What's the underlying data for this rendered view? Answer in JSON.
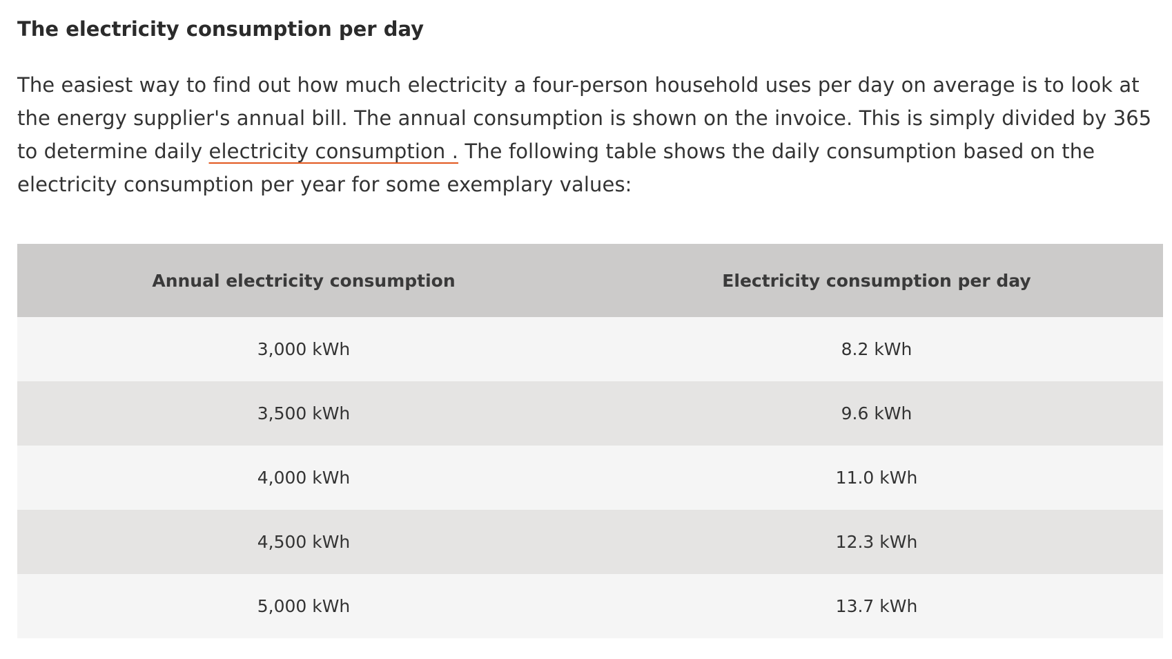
{
  "heading": "The electricity consumption per day",
  "intro": {
    "before_link": "The easiest way to find out how much electricity a four-person household uses per day on average is to look at the energy supplier's annual bill. The annual consumption is shown on the invoice. This is simply divided by 365 to determine daily ",
    "link_text": "electricity consumption .",
    "after_link": " The following table shows the daily consumption based on the electricity consumption per year for some exemplary values:"
  },
  "table": {
    "headers": [
      "Annual electricity consumption",
      "Electricity consumption per day"
    ],
    "rows": [
      [
        "3,000 kWh",
        "8.2 kWh"
      ],
      [
        "3,500 kWh",
        "9.6 kWh"
      ],
      [
        "4,000 kWh",
        "11.0 kWh"
      ],
      [
        "4,500 kWh",
        "12.3 kWh"
      ],
      [
        "5,000 kWh",
        "13.7 kWh"
      ]
    ]
  },
  "colors": {
    "link_underline": "#e2571e",
    "header_bg": "#cccbca",
    "row_odd_bg": "#f5f5f5",
    "row_even_bg": "#e5e4e3"
  }
}
